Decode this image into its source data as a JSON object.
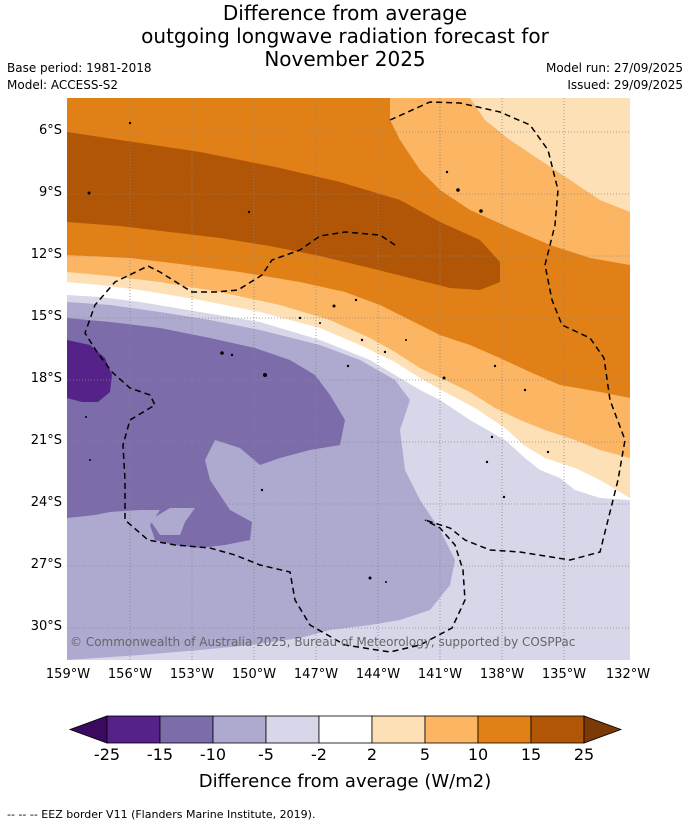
{
  "title": {
    "line1": "Difference from average",
    "line2": "outgoing longwave radiation forecast for",
    "line3": "November 2025"
  },
  "meta": {
    "base_period": "Base period: 1981-2018",
    "model": "Model: ACCESS-S2",
    "model_run": "Model run: 27/09/2025",
    "issued": "Issued: 29/09/2025"
  },
  "map": {
    "lat_labels": [
      "6°S",
      "9°S",
      "12°S",
      "15°S",
      "18°S",
      "21°S",
      "24°S",
      "27°S",
      "30°S"
    ],
    "lon_labels": [
      "159°W",
      "156°W",
      "153°W",
      "150°W",
      "147°W",
      "144°W",
      "141°W",
      "138°W",
      "135°W",
      "132°W"
    ],
    "copyright": "© Commonwealth of Australia 2025, Bureau of Meteorology, supported by COSPPac"
  },
  "colorbar": {
    "ticks": [
      "-25",
      "-15",
      "-10",
      "-5",
      "-2",
      "2",
      "5",
      "10",
      "15",
      "25"
    ],
    "label": "Difference from average (W/m2)",
    "colors": [
      "#3a0a61",
      "#55228a",
      "#7c6daa",
      "#ada9cf",
      "#d7d7e9",
      "#ffffff",
      "#fde0b6",
      "#fbb563",
      "#e08016",
      "#b05606",
      "#7b3a05"
    ]
  },
  "legend": {
    "eez": "--  --  -- EEZ border V11 (Flanders Marine Institute, 2019)."
  }
}
